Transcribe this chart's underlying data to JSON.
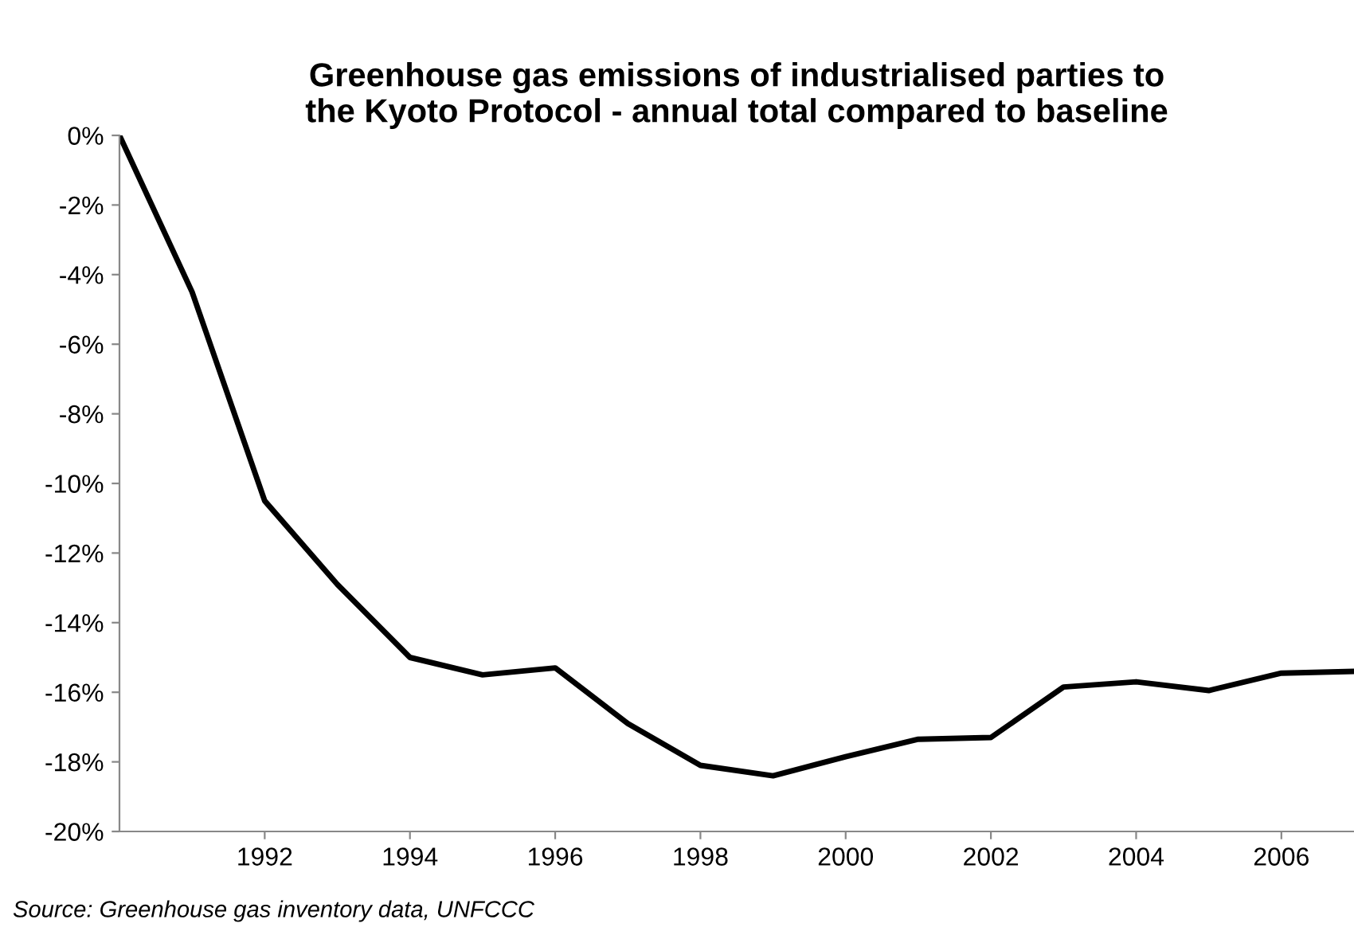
{
  "chart_data": {
    "type": "line",
    "title": "Greenhouse gas emissions of industrialised parties to\nthe Kyoto Protocol - annual total compared to baseline",
    "x": [
      1990,
      1991,
      1992,
      1993,
      1994,
      1995,
      1996,
      1997,
      1998,
      1999,
      2000,
      2001,
      2002,
      2003,
      2004,
      2005,
      2006,
      2007
    ],
    "series": [
      {
        "color": "#000000",
        "values": [
          0,
          -4.5,
          -10.5,
          -12.9,
          -15,
          -15.5,
          -15.3,
          -16.9,
          -18.1,
          -18.4,
          -17.85,
          -17.35,
          -17.3,
          -15.85,
          -15.7,
          -15.95,
          -15.45,
          -15.4
        ]
      }
    ],
    "xlim": [
      1990,
      2007
    ],
    "xticks": [
      1992,
      1994,
      1996,
      1998,
      2000,
      2002,
      2004,
      2006
    ],
    "ylim": [
      -20,
      0
    ],
    "yticks": [
      {
        "value": 0,
        "label": "0%"
      },
      {
        "value": -2,
        "label": "-2%"
      },
      {
        "value": -4,
        "label": "-4%"
      },
      {
        "value": -6,
        "label": "-6%"
      },
      {
        "value": -8,
        "label": "-8%"
      },
      {
        "value": -10,
        "label": "-10%"
      },
      {
        "value": -12,
        "label": "-12%"
      },
      {
        "value": -14,
        "label": "-14%"
      },
      {
        "value": -16,
        "label": "-16%"
      },
      {
        "value": -18,
        "label": "-18%"
      },
      {
        "value": -20,
        "label": "-20%"
      }
    ],
    "grid": false,
    "marker": "none",
    "line_style": "solid",
    "annotations": [
      "Source: Greenhouse gas inventory data, UNFCCC"
    ]
  }
}
